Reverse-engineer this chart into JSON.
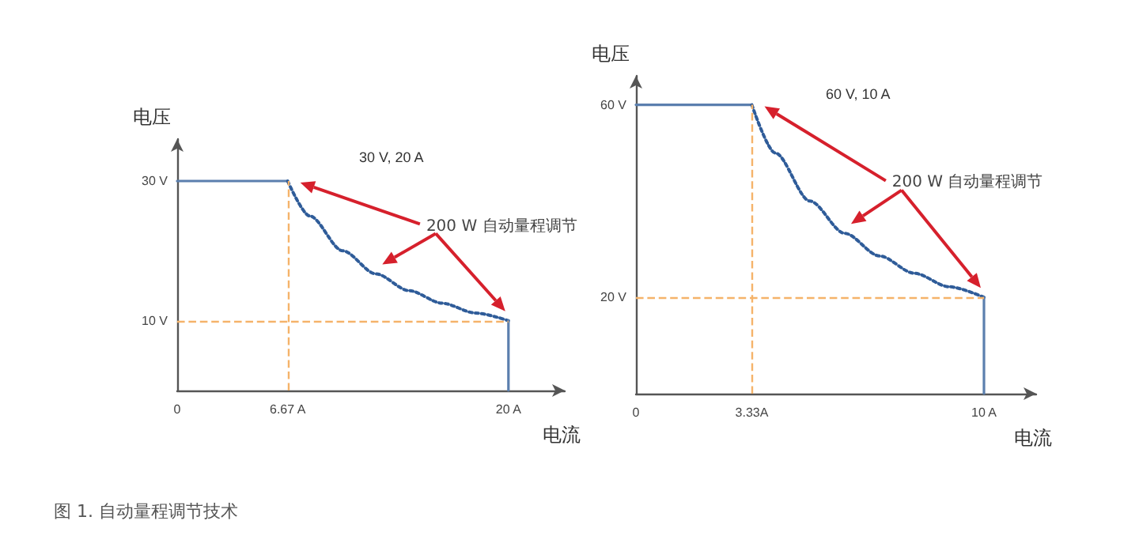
{
  "chart_data": [
    {
      "type": "line",
      "subtitle": "30 V, 20 A",
      "xlabel": "电流",
      "ylabel": "电压",
      "xlim": [
        0,
        23.4
      ],
      "ylim": [
        0,
        36
      ],
      "xticks": [
        0,
        {
          "value": 6.67,
          "label": "6.67 A"
        },
        {
          "value": 20,
          "label": "20 A"
        }
      ],
      "yticks": [
        {
          "value": 10,
          "label": "10 V"
        },
        {
          "value": 30,
          "label": "30 V"
        }
      ],
      "series": [
        {
          "x": [
            0,
            6.67
          ],
          "values": [
            30,
            30
          ],
          "color": "#5b7fae",
          "line_style": "solid"
        },
        {
          "x": [
            6.67,
            8,
            10,
            12,
            14,
            16,
            18,
            20
          ],
          "values": [
            30,
            25,
            20,
            16.7,
            14.3,
            12.5,
            11.1,
            10
          ],
          "color": "#2f5c99",
          "line_style": "dotted"
        },
        {
          "x": [
            20,
            20
          ],
          "values": [
            10,
            0
          ],
          "color": "#5b7fae",
          "line_style": "solid"
        }
      ],
      "ref_lines": [
        {
          "axis": "x",
          "value": 6.67,
          "color": "#f5b36a",
          "line_style": "dashed"
        },
        {
          "axis": "y",
          "value": 10,
          "color": "#f5b36a",
          "line_style": "dashed"
        }
      ],
      "annotations": [
        "200 W 自动量程调节",
        "图 1. 自动量程调节技术"
      ],
      "grid": false,
      "marker": "none"
    },
    {
      "type": "line",
      "subtitle": "60 V, 10 A",
      "xlabel": "电流",
      "ylabel": "电压",
      "xlim": [
        0,
        11.5
      ],
      "ylim": [
        0,
        66
      ],
      "xticks": [
        0,
        {
          "value": 3.33,
          "label": "3.33A"
        },
        {
          "value": 10,
          "label": "10 A"
        }
      ],
      "yticks": [
        {
          "value": 20,
          "label": "20 V"
        },
        {
          "value": 60,
          "label": "60 V"
        }
      ],
      "series": [
        {
          "x": [
            0,
            3.33
          ],
          "values": [
            60,
            60
          ],
          "color": "#5b7fae",
          "line_style": "solid"
        },
        {
          "x": [
            3.33,
            4,
            5,
            6,
            7,
            8,
            9,
            10
          ],
          "values": [
            60,
            50,
            40,
            33.3,
            28.6,
            25,
            22.2,
            20
          ],
          "color": "#2f5c99",
          "line_style": "dotted"
        },
        {
          "x": [
            10,
            10
          ],
          "values": [
            20,
            0
          ],
          "color": "#5b7fae",
          "line_style": "solid"
        }
      ],
      "ref_lines": [
        {
          "axis": "x",
          "value": 3.33,
          "color": "#f5b36a",
          "line_style": "dashed"
        },
        {
          "axis": "y",
          "value": 20,
          "color": "#f5b36a",
          "line_style": "dashed"
        }
      ],
      "annotations": [
        "200 W 自动量程调节"
      ],
      "grid": false,
      "marker": "none"
    }
  ]
}
